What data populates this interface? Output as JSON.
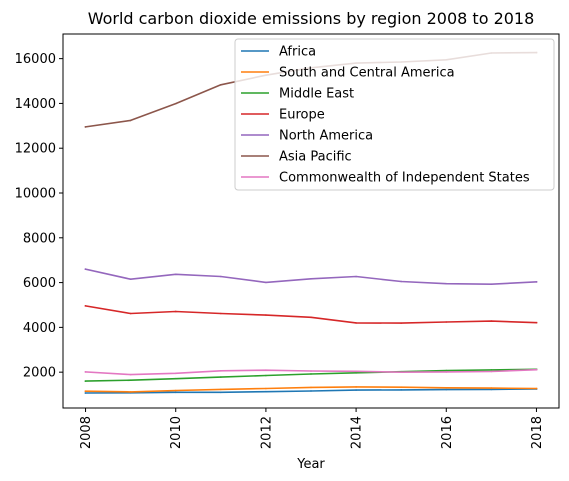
{
  "chart_data": {
    "type": "line",
    "title": "World carbon dioxide emissions by region 2008 to 2018",
    "xlabel": "Year",
    "ylabel": "",
    "x": [
      2008,
      2009,
      2010,
      2011,
      2012,
      2013,
      2014,
      2015,
      2016,
      2017,
      2018
    ],
    "xticks": [
      2008,
      2010,
      2012,
      2014,
      2016,
      2018
    ],
    "xtick_rotation": "vertical",
    "xlim": [
      2007.5,
      2018.5
    ],
    "yticks": [
      2000,
      4000,
      6000,
      8000,
      10000,
      12000,
      14000,
      16000
    ],
    "ylim": [
      400,
      17100
    ],
    "grid": false,
    "legend_position": "upper-right",
    "series": [
      {
        "name": "Africa",
        "color": "#1f77b4",
        "values": [
          1070,
          1080,
          1100,
          1100,
          1130,
          1160,
          1200,
          1210,
          1220,
          1230,
          1250
        ]
      },
      {
        "name": "South and Central America",
        "color": "#ff7f0e",
        "values": [
          1150,
          1120,
          1180,
          1230,
          1270,
          1320,
          1340,
          1330,
          1300,
          1290,
          1270
        ]
      },
      {
        "name": "Middle East",
        "color": "#2ca02c",
        "values": [
          1600,
          1640,
          1710,
          1780,
          1850,
          1920,
          1970,
          2020,
          2070,
          2100,
          2130
        ]
      },
      {
        "name": "Europe",
        "color": "#d62728",
        "values": [
          4960,
          4620,
          4710,
          4620,
          4550,
          4450,
          4200,
          4190,
          4240,
          4280,
          4210
        ]
      },
      {
        "name": "North America",
        "color": "#9467bd",
        "values": [
          6600,
          6150,
          6370,
          6270,
          6010,
          6170,
          6270,
          6050,
          5950,
          5930,
          6030
        ]
      },
      {
        "name": "Asia Pacific",
        "color": "#8c564b",
        "values": [
          12950,
          13240,
          13990,
          14830,
          15260,
          15590,
          15800,
          15850,
          15950,
          16250,
          16270
        ]
      },
      {
        "name": "Commonwealth of Independent States",
        "color": "#e377c2",
        "values": [
          2010,
          1890,
          1950,
          2060,
          2090,
          2050,
          2040,
          2000,
          2010,
          2030,
          2110
        ]
      }
    ]
  }
}
